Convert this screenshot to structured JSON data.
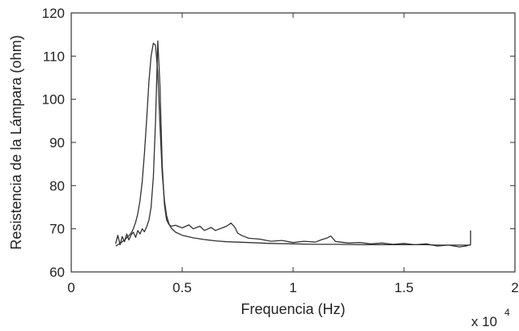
{
  "chart_data": {
    "type": "line",
    "xlabel": "Frequencia (Hz)",
    "ylabel": "Resistencia de la Lámpara (ohm)",
    "x_multiplier_text": "x 10",
    "x_multiplier_exponent": "4",
    "xlim": [
      0,
      2
    ],
    "ylim": [
      60,
      120
    ],
    "x_ticks": [
      0,
      0.5,
      1,
      1.5,
      2
    ],
    "x_tick_labels": [
      "0",
      "0.5",
      "1",
      "1.5",
      "2"
    ],
    "y_ticks": [
      60,
      70,
      80,
      90,
      100,
      110,
      120
    ],
    "y_tick_labels": [
      "60",
      "70",
      "80",
      "90",
      "100",
      "110",
      "120"
    ],
    "grid": false,
    "series": [
      {
        "color": "#333333",
        "x": [
          0.2,
          0.21,
          0.22,
          0.23,
          0.24,
          0.25,
          0.26,
          0.27,
          0.28,
          0.29,
          0.3,
          0.31,
          0.32,
          0.33,
          0.34,
          0.35,
          0.36,
          0.37,
          0.38,
          0.39,
          0.4,
          0.41,
          0.42,
          0.43,
          0.44,
          0.45,
          0.47,
          0.5,
          0.55,
          0.6,
          0.65,
          0.7,
          0.75,
          0.8,
          0.9,
          1.0,
          1.1,
          1.2,
          1.3,
          1.4,
          1.5,
          1.6,
          1.65,
          1.7,
          1.75,
          1.8
        ],
        "y": [
          66.0,
          66.3,
          66.6,
          67.0,
          67.4,
          67.9,
          68.4,
          69.0,
          70.0,
          71.5,
          73.5,
          76.5,
          81.0,
          87.5,
          95.5,
          104.0,
          110.0,
          113.0,
          112.5,
          106.0,
          94.0,
          83.0,
          76.5,
          73.0,
          71.2,
          70.2,
          69.2,
          68.5,
          67.9,
          67.5,
          67.2,
          67.0,
          66.9,
          66.8,
          66.6,
          66.5,
          66.4,
          66.4,
          66.3,
          66.3,
          66.3,
          66.3,
          66.2,
          66.2,
          66.2,
          66.2
        ]
      },
      {
        "color": "#333333",
        "x": [
          0.2,
          0.21,
          0.22,
          0.23,
          0.24,
          0.25,
          0.26,
          0.27,
          0.28,
          0.29,
          0.3,
          0.31,
          0.32,
          0.33,
          0.34,
          0.35,
          0.36,
          0.37,
          0.38,
          0.39,
          0.4,
          0.41,
          0.42,
          0.43,
          0.44,
          0.45,
          0.47,
          0.5,
          0.53,
          0.55,
          0.58,
          0.6,
          0.63,
          0.65,
          0.68,
          0.7,
          0.72,
          0.73,
          0.74,
          0.75,
          0.77,
          0.8,
          0.85,
          0.9,
          0.95,
          1.0,
          1.05,
          1.1,
          1.13,
          1.15,
          1.17,
          1.19,
          1.2,
          1.25,
          1.3,
          1.35,
          1.4,
          1.45,
          1.5,
          1.55,
          1.6,
          1.65,
          1.7,
          1.75,
          1.78,
          1.8,
          1.8
        ],
        "y": [
          66.5,
          68.5,
          66.3,
          68.2,
          67.0,
          68.8,
          67.4,
          68.6,
          69.2,
          68.0,
          69.6,
          68.8,
          70.0,
          69.3,
          70.5,
          72.0,
          75.0,
          82.0,
          95.0,
          113.5,
          103.0,
          85.0,
          75.5,
          72.0,
          71.0,
          70.6,
          70.8,
          70.2,
          70.9,
          70.0,
          70.6,
          69.6,
          70.3,
          69.6,
          70.2,
          70.6,
          71.3,
          70.8,
          70.1,
          69.0,
          68.4,
          67.8,
          67.6,
          67.1,
          67.3,
          66.8,
          67.1,
          66.9,
          67.5,
          67.8,
          68.3,
          67.1,
          67.0,
          66.7,
          66.8,
          66.5,
          66.7,
          66.4,
          66.6,
          66.3,
          66.5,
          66.0,
          66.2,
          65.8,
          66.0,
          66.3,
          69.6
        ]
      }
    ]
  }
}
